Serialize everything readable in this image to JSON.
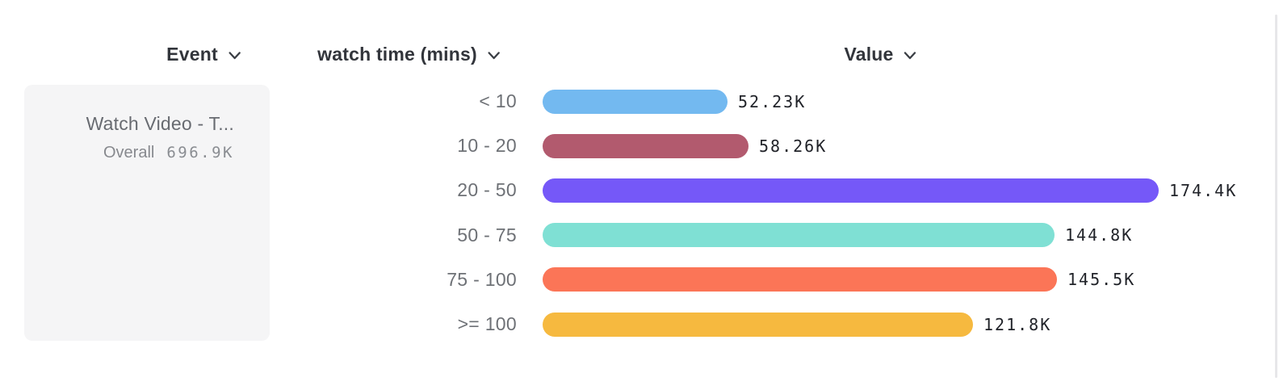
{
  "header": {
    "columns": [
      {
        "label": "Event"
      },
      {
        "label": "watch time (mins)"
      },
      {
        "label": "Value"
      }
    ]
  },
  "event_card": {
    "title": "Watch Video - T...",
    "overall_label": "Overall",
    "overall_value": "696.9K"
  },
  "chart_data": {
    "type": "bar",
    "orientation": "horizontal",
    "title": "",
    "xlabel": "Value",
    "ylabel": "watch time (mins)",
    "categories": [
      "< 10",
      "10 - 20",
      "20 - 50",
      "50 - 75",
      "75 - 100",
      ">= 100"
    ],
    "values": [
      52230,
      58260,
      174400,
      144800,
      145500,
      121800
    ],
    "value_labels": [
      "52.23K",
      "58.26K",
      "174.4K",
      "144.8K",
      "145.5K",
      "121.8K"
    ],
    "bar_colors": [
      "#73b9f0",
      "#b25a6e",
      "#7558f8",
      "#7fe0d4",
      "#fb7557",
      "#f6b93f"
    ],
    "xlim": [
      0,
      174400
    ],
    "grid": false,
    "legend": false
  },
  "colors": {
    "header_text": "#32353b",
    "category_text": "#6e7176",
    "value_text": "#212329",
    "card_bg": "#f5f5f6"
  }
}
